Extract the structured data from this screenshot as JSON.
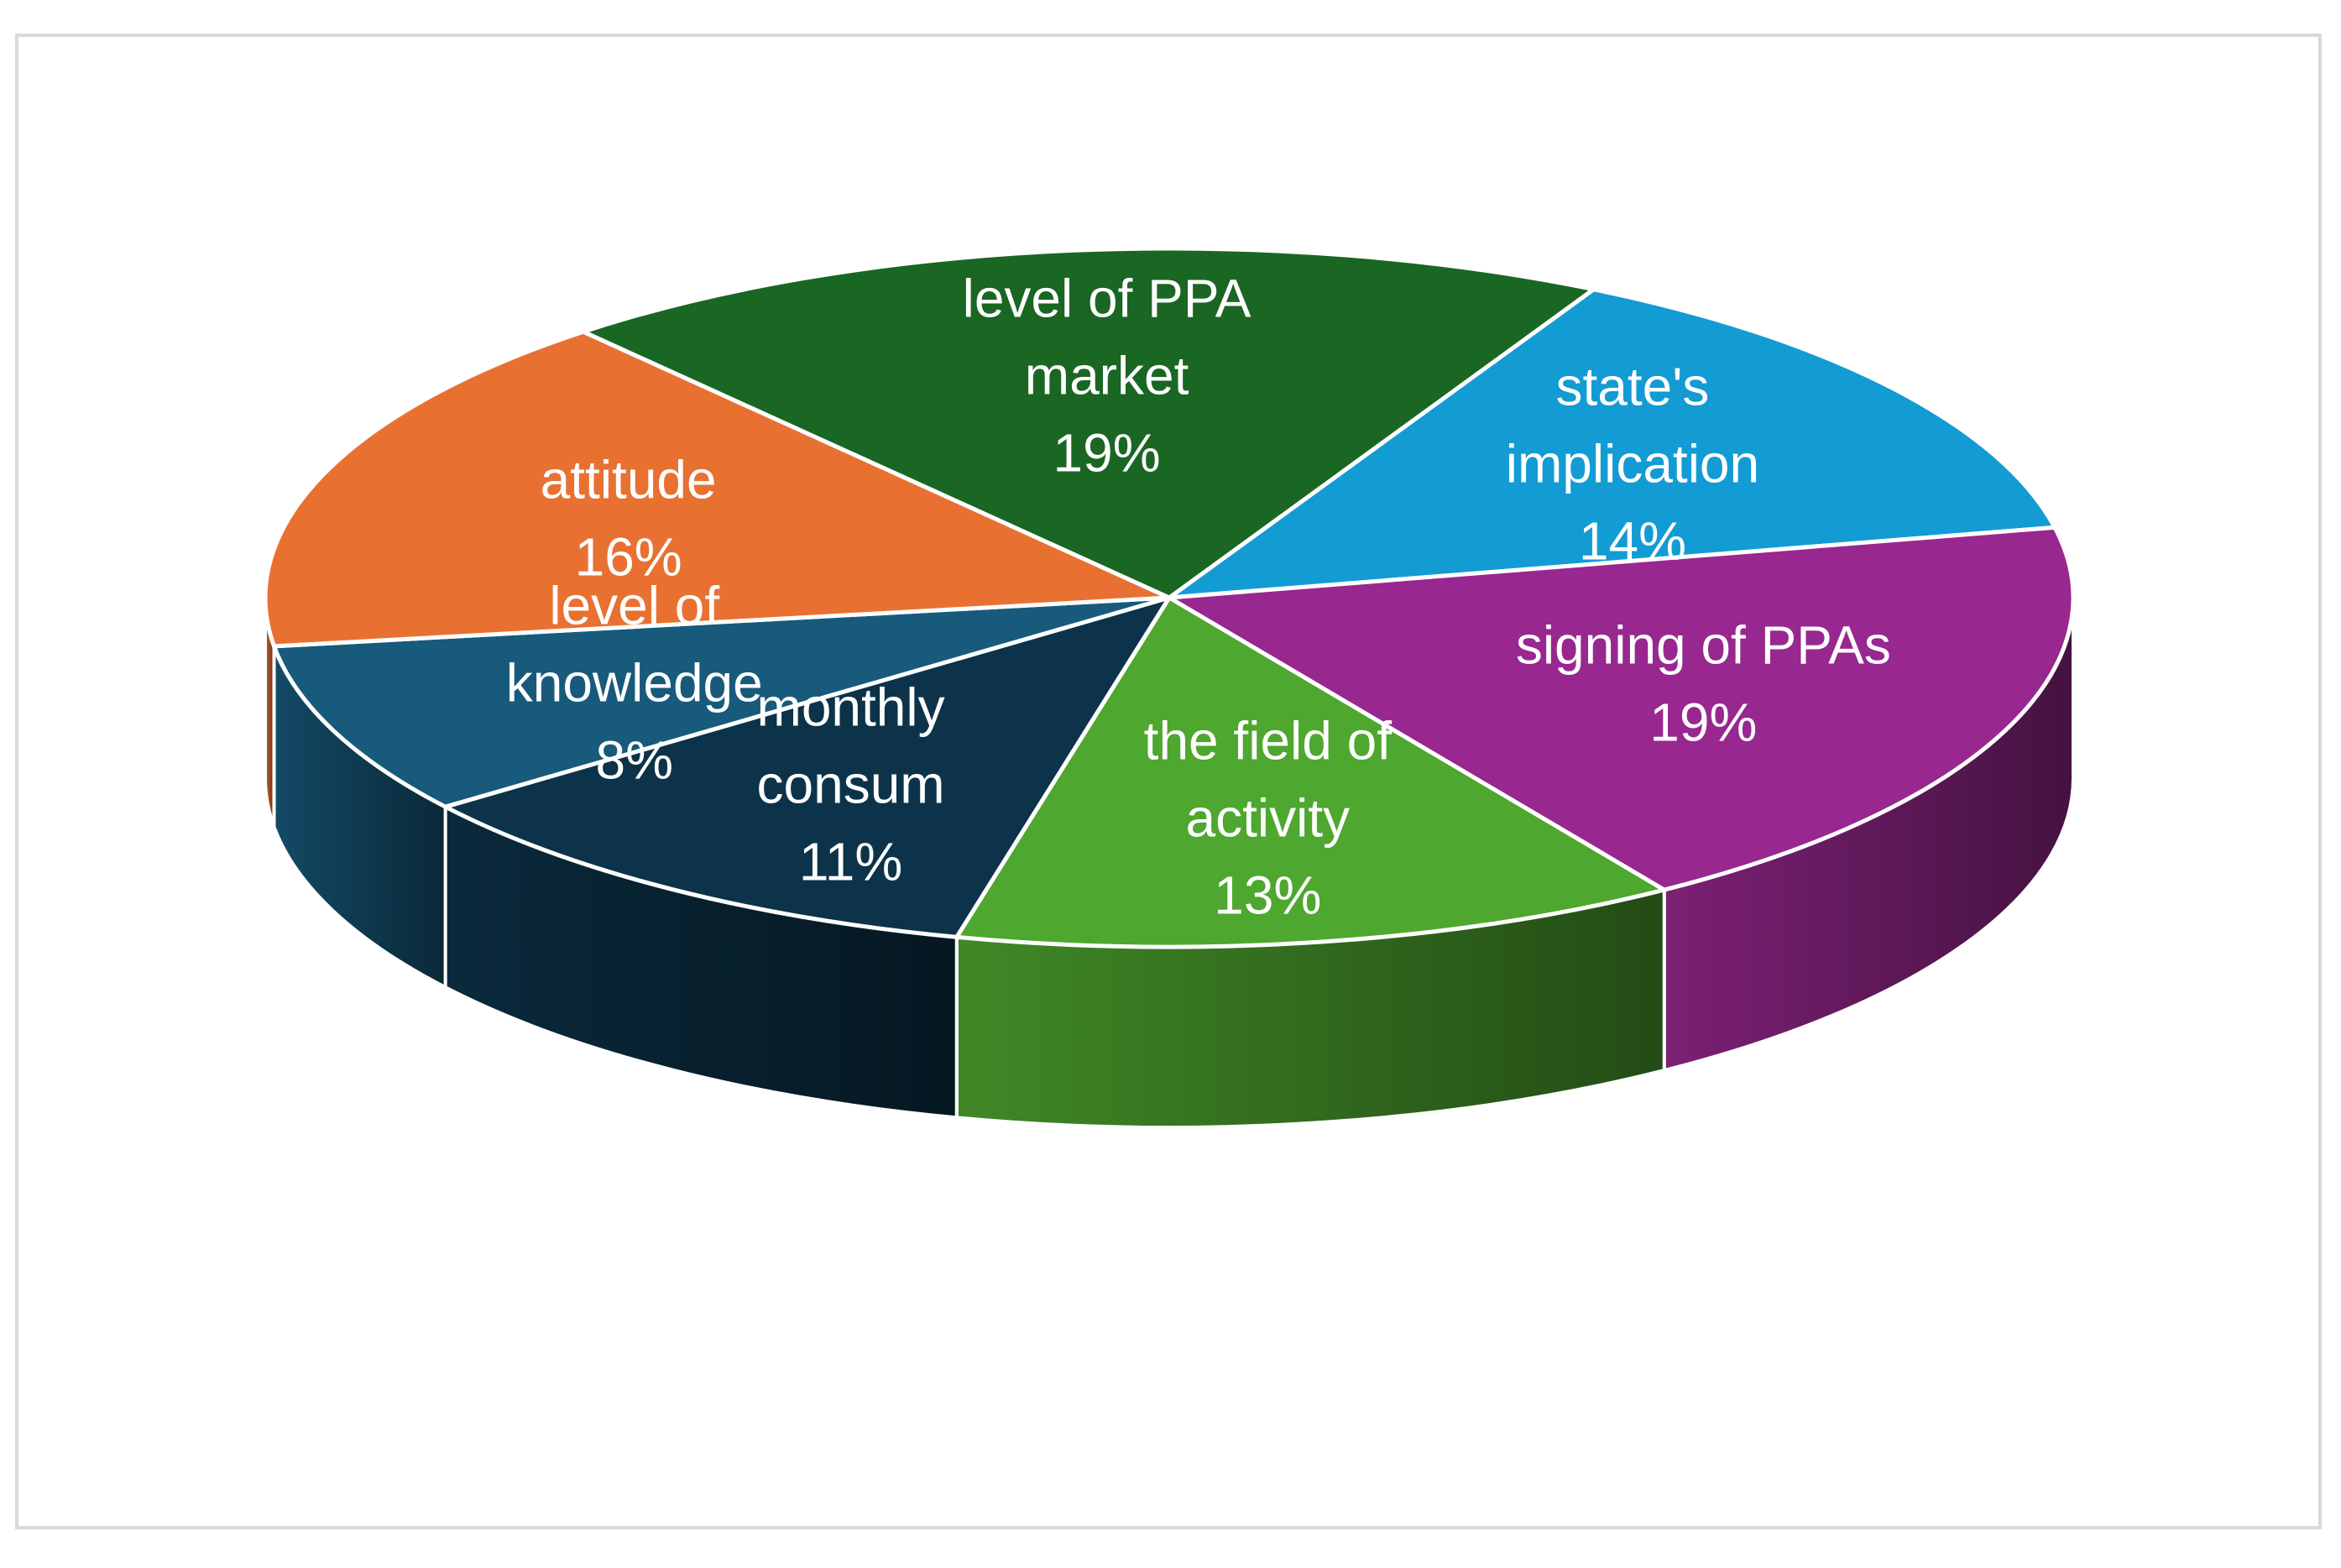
{
  "chart_data": {
    "type": "pie",
    "style": "3d",
    "slices": [
      {
        "label": "state's implication",
        "value": 14,
        "value_label": "14%",
        "color": "#139BD4"
      },
      {
        "label": "signing of PPAs",
        "value": 19,
        "value_label": "19%",
        "color": "#98278F"
      },
      {
        "label": "the field of activity",
        "value": 13,
        "value_label": "13%",
        "color": "#4EA72E"
      },
      {
        "label": "monthly consum",
        "value": 11,
        "value_label": "11%",
        "color": "#0C3349"
      },
      {
        "label": "level of knowledge",
        "value": 8,
        "value_label": "8%",
        "color": "#175A7C"
      },
      {
        "label": "attitude",
        "value": 16,
        "value_label": "16%",
        "color": "#E87132"
      },
      {
        "label": "level of PPA market",
        "value": 19,
        "value_label": "19%",
        "color": "#1A6623"
      }
    ],
    "legend": "none"
  },
  "labels": [
    {
      "lines": [
        "state's",
        "implication",
        "14%"
      ]
    },
    {
      "lines": [
        "signing of PPAs",
        "19%"
      ]
    },
    {
      "lines": [
        "the field of",
        "activity",
        "13%"
      ]
    },
    {
      "lines": [
        "monthly",
        "consum",
        "11%"
      ]
    },
    {
      "lines": [
        "level of",
        "knowledge",
        "8%"
      ]
    },
    {
      "lines": [
        "attitude",
        "16%"
      ]
    },
    {
      "lines": [
        "level of PPA",
        "market",
        "19%"
      ]
    }
  ]
}
